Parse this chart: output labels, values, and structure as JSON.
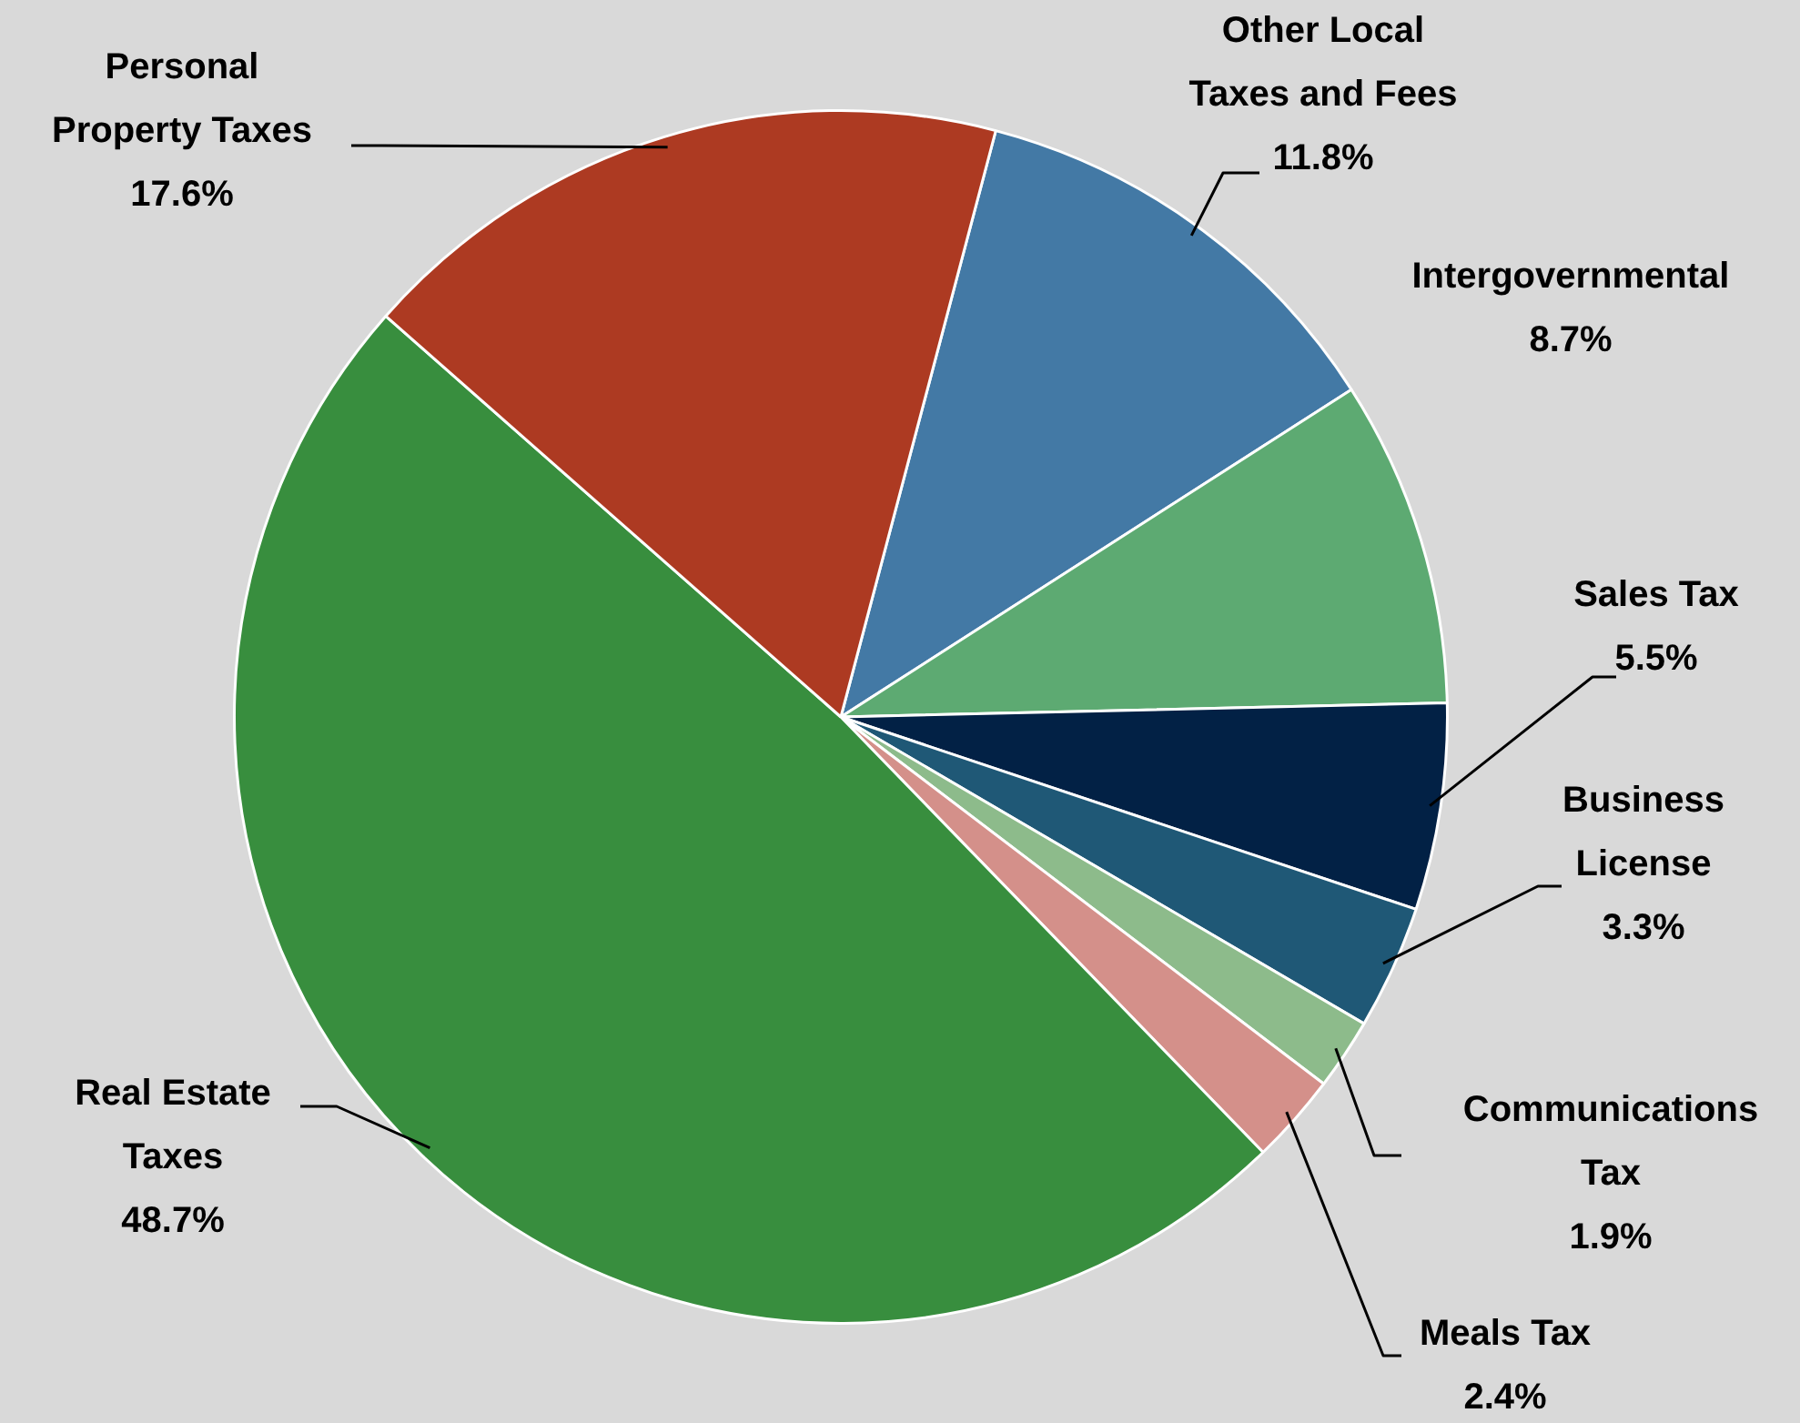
{
  "chart_data": {
    "type": "pie",
    "categories": [
      "Other Local Taxes and Fees",
      "Intergovernmental",
      "Sales Tax",
      "Business License",
      "Communications Tax",
      "Meals Tax",
      "Real Estate Taxes",
      "Personal Property Taxes"
    ],
    "values": [
      11.8,
      8.7,
      5.5,
      3.3,
      1.9,
      2.4,
      48.7,
      17.6
    ],
    "value_labels": [
      "11.8%",
      "8.7%",
      "5.5%",
      "3.3%",
      "1.9%",
      "2.4%",
      "48.7%",
      "17.6%"
    ],
    "colors": [
      "#4379a5",
      "#5daa72",
      "#022145",
      "#1f5876",
      "#8dbb8b",
      "#d4908a",
      "#388e3e",
      "#ad3a22"
    ],
    "legend": false
  }
}
